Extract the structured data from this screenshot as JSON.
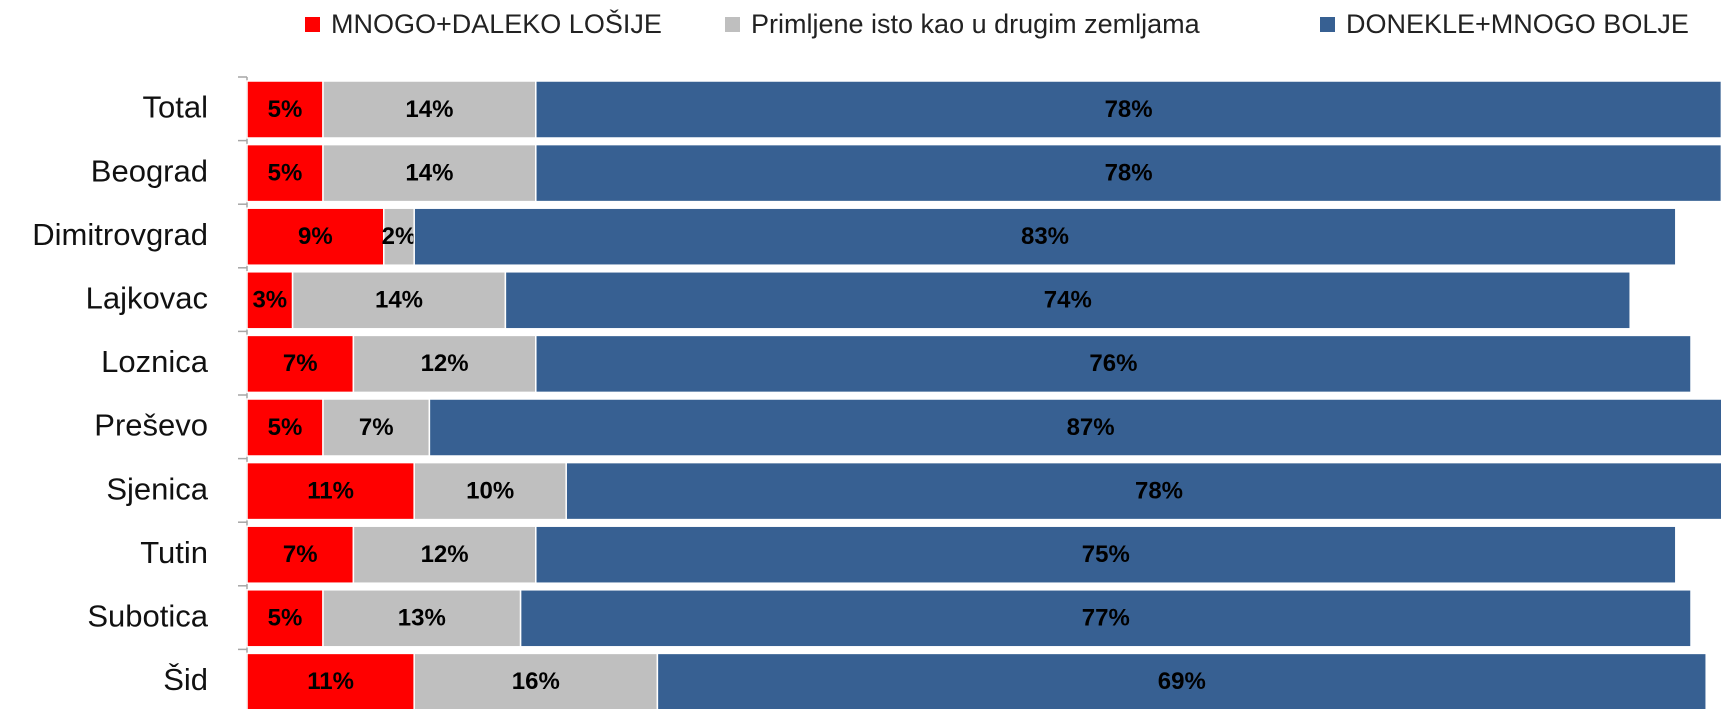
{
  "chart_data": {
    "type": "bar",
    "orientation": "horizontal",
    "stacked": true,
    "categories": [
      "Total",
      "Beograd",
      "Dimitrovgrad",
      "Lajkovac",
      "Loznica",
      "Preševo",
      "Sjenica",
      "Tutin",
      "Subotica",
      "Šid"
    ],
    "series": [
      {
        "name": "MNOGO+DALEKO LOŠIJE",
        "color": "#ff0000",
        "values": [
          5,
          5,
          9,
          3,
          7,
          5,
          11,
          7,
          5,
          11
        ],
        "value_labels": [
          "5%",
          "5%",
          "9%",
          "3%",
          "7%",
          "5%",
          "11%",
          "7%",
          "5%",
          "11%"
        ]
      },
      {
        "name": "Primljene isto kao u drugim zemljama",
        "color": "#bfbfbf",
        "values": [
          14,
          14,
          2,
          14,
          12,
          7,
          10,
          12,
          13,
          16
        ],
        "value_labels": [
          "14%",
          "14%",
          "2%",
          "14%",
          "12%",
          "7%",
          "10%",
          "12%",
          "13%",
          "16%"
        ]
      },
      {
        "name": "DONEKLE+MNOGO BOLJE",
        "color": "#376092",
        "values": [
          78,
          78,
          83,
          74,
          76,
          87,
          78,
          75,
          77,
          69
        ],
        "value_labels": [
          "78%",
          "78%",
          "83%",
          "74%",
          "76%",
          "87%",
          "78%",
          "75%",
          "77%",
          "69%"
        ]
      }
    ],
    "legend": "top"
  }
}
